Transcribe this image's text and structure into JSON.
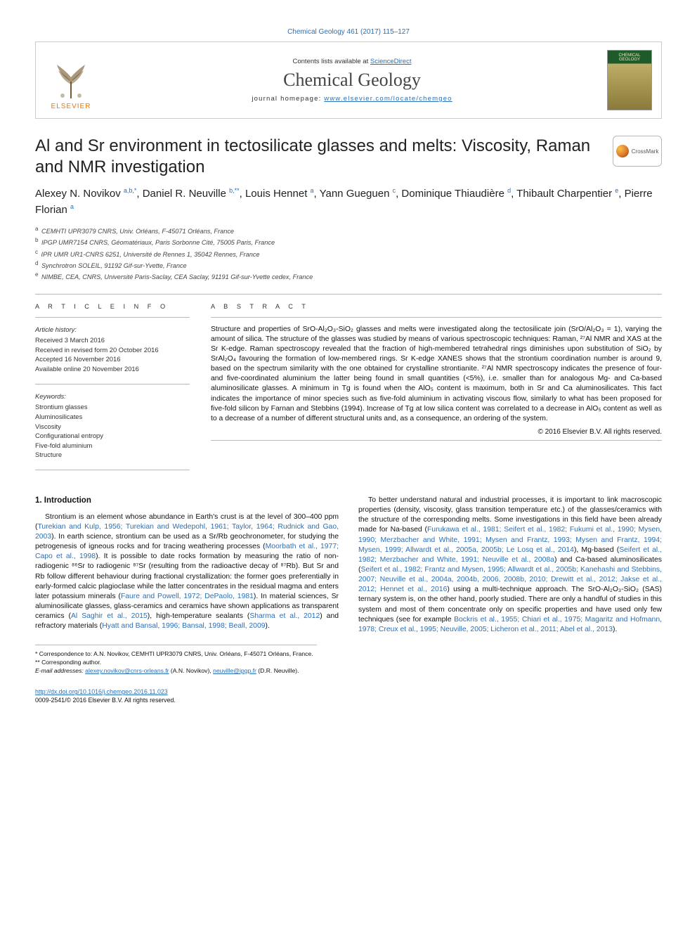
{
  "journal_info": {
    "header_link_text": "Chemical Geology 461 (2017) 115–127",
    "contents_prefix": "Contents lists available at ",
    "contents_link": "ScienceDirect",
    "journal_name": "Chemical Geology",
    "homepage_prefix": "journal homepage: ",
    "homepage_url": "www.elsevier.com/locate/chemgeo",
    "publisher_logo_text": "ELSEVIER",
    "cover_label_line1": "CHEMICAL",
    "cover_label_line2": "GEOLOGY"
  },
  "crossmark_label": "CrossMark",
  "article": {
    "title": "Al and Sr environment in tectosilicate glasses and melts: Viscosity, Raman and NMR investigation",
    "authors_html": "Alexey N. Novikov <sup>a,b,*</sup>, Daniel R. Neuville <sup>b,**</sup>, Louis Hennet <sup>a</sup>, Yann Gueguen <sup>c</sup>, Dominique Thiaudière <sup>d</sup>, Thibault Charpentier <sup>e</sup>, Pierre Florian <sup>a</sup>",
    "affiliations": [
      {
        "sup": "a",
        "text": "CEMHTI UPR3079 CNRS, Univ. Orléans, F-45071 Orléans, France"
      },
      {
        "sup": "b",
        "text": "IPGP UMR7154 CNRS, Géomatériaux, Paris Sorbonne Cité, 75005 Paris, France"
      },
      {
        "sup": "c",
        "text": "IPR UMR UR1-CNRS 6251, Université de Rennes 1, 35042 Rennes, France"
      },
      {
        "sup": "d",
        "text": "Synchrotron SOLEIL, 91192 Gif-sur-Yvette, France"
      },
      {
        "sup": "e",
        "text": "NIMBE, CEA, CNRS, Université Paris-Saclay, CEA Saclay, 91191 Gif-sur-Yvette cedex, France"
      }
    ]
  },
  "article_info": {
    "heading": "A R T I C L E  I N F O",
    "history_label": "Article history:",
    "history": [
      "Received 3 March 2016",
      "Received in revised form 20 October 2016",
      "Accepted 16 November 2016",
      "Available online 20 November 2016"
    ],
    "keywords_label": "Keywords:",
    "keywords": [
      "Strontium glasses",
      "Aluminosilicates",
      "Viscosity",
      "Configurational entropy",
      "Five-fold aluminium",
      "Structure"
    ]
  },
  "abstract": {
    "heading": "A B S T R A C T",
    "text": "Structure and properties of SrO-Al₂O₃-SiO₂ glasses and melts were investigated along the tectosilicate join (SrO/Al₂O₃ = 1), varying the amount of silica. The structure of the glasses was studied by means of various spectroscopic techniques: Raman, ²⁷Al NMR and XAS at the Sr K-edge. Raman spectroscopy revealed that the fraction of high-membered tetrahedral rings diminishes upon substitution of SiO₂ by SrAl₂O₄ favouring the formation of low-membered rings. Sr K-edge XANES shows that the strontium coordination number is around 9, based on the spectrum similarity with the one obtained for crystalline strontianite. ²⁷Al NMR spectroscopy indicates the presence of four- and five-coordinated aluminium the latter being found in small quantities (<5%), i.e. smaller than for analogous Mg- and Ca-based aluminosilicate glasses. A minimum in Tg is found when the AlO₅ content is maximum, both in Sr and Ca aluminosilicates. This fact indicates the importance of minor species such as five-fold aluminium in activating viscous flow, similarly to what has been proposed for five-fold silicon by Farnan and Stebbins (1994). Increase of Tg at low silica content was correlated to a decrease in AlO₅ content as well as to a decrease of a number of different structural units and, as a consequence, an ordering of the system.",
    "copyright": "© 2016 Elsevier B.V. All rights reserved."
  },
  "body": {
    "section_heading": "1. Introduction",
    "para1_pre": "Strontium is an element whose abundance in Earth's crust is at the level of 300–400 ppm (",
    "para1_ref1": "Turekian and Kulp, 1956; Turekian and Wedepohl, 1961; Taylor, 1964; Rudnick and Gao, 2003",
    "para1_mid1": "). In earth science, strontium can be used as a Sr/Rb geochronometer, for studying the petrogenesis of igneous rocks and for tracing weathering processes (",
    "para1_ref2": "Moorbath et al., 1977; Capo et al., 1998",
    "para1_mid2": "). It is possible to date rocks formation by measuring the ratio of non-radiogenic ⁸⁶Sr to radiogenic ⁸⁷Sr (resulting from the radioactive decay of ⁸⁷Rb). But Sr and Rb follow different behaviour during fractional crystallization: the former goes preferentially in early-formed calcic plagioclase while the latter concentrates in the residual magma and enters later potassium minerals (",
    "para1_ref3": "Faure and Powell, 1972; DePaolo, 1981",
    "para1_mid3": "). In material sciences, Sr aluminosilicate glasses, glass-ceramics and ceramics have shown applications as transparent ceramics (",
    "para1_ref4": "Al Saghir et al., 2015",
    "para1_mid4": "), high-temperature sealants (",
    "para1_ref5": "Sharma et al., 2012",
    "para1_mid5": ") and refractory materials (",
    "para1_ref6": "Hyatt and Bansal, 1996; Bansal, 1998; Beall, 2009",
    "para1_end": ").",
    "para2_pre": "To better understand natural and industrial processes, it is important to link macroscopic properties (density, viscosity, glass transition temperature etc.) of the glasses/ceramics with the structure of the corresponding melts. Some investigations in this field have been already made for Na-based (",
    "para2_ref1": "Furukawa et al., 1981; Seifert et al., 1982; Fukumi et al., 1990; Mysen, 1990; Merzbacher and White, 1991; Mysen and Frantz, 1993; Mysen and Frantz, 1994; Mysen, 1999; Allwardt et al., 2005a, 2005b; Le Losq et al., 2014",
    "para2_mid1": "), Mg-based (",
    "para2_ref2": "Seifert et al., 1982; Merzbacher and White, 1991; Neuville et al., 2008a",
    "para2_mid2": ") and Ca-based aluminosilicates (",
    "para2_ref3": "Seifert et al., 1982; Frantz and Mysen, 1995; Allwardt et al., 2005b; Kanehashi and Stebbins, 2007; Neuville et al., 2004a, 2004b, 2006, 2008b, 2010; Drewitt et al., 2012; Jakse et al., 2012; Hennet et al., 2016",
    "para2_mid3": ") using a multi-technique approach. The SrO-Al₂O₃-SiO₂ (SAS) ternary system is, on the other hand, poorly studied. There are only a handful of studies in this system and most of them concentrate only on specific properties and have used only few techniques (see for example ",
    "para2_ref4": "Bockris et al., 1955; Chiari et al., 1975; Magaritz and Hofmann, 1978; Creux et al., 1995; Neuville, 2005; Licheron et al., 2011; Abel et al., 2013",
    "para2_end": ")."
  },
  "footnotes": {
    "corr1": "* Correspondence to: A.N. Novikov, CEMHTI UPR3079 CNRS, Univ. Orléans, F-45071 Orléans, France.",
    "corr2": "** Corresponding author.",
    "emails_prefix": "E-mail addresses: ",
    "email1": "alexey.novikov@cnrs-orleans.fr",
    "email1_who": " (A.N. Novikov), ",
    "email2": "neuville@ipgp.fr",
    "email2_who": " (D.R. Neuville)."
  },
  "footer": {
    "doi": "http://dx.doi.org/10.1016/j.chemgeo.2016.11.023",
    "issn_line": "0009-2541/© 2016 Elsevier B.V. All rights reserved."
  },
  "colors": {
    "link": "#2b6fb6",
    "rule": "#bcbcbc",
    "publisher_orange": "#e67817"
  }
}
